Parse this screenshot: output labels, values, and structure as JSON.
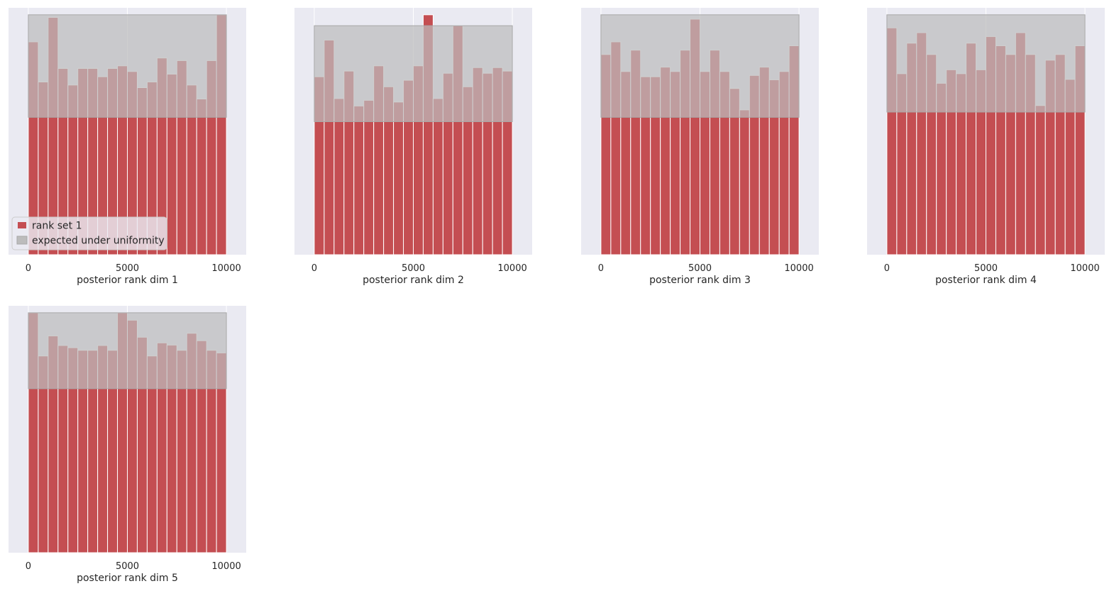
{
  "colors": {
    "axes_background": "#eaeaf2",
    "gridline": "#ffffff",
    "bar_fill": "#c44e52",
    "uniform_band_fill": "#bcbcbc",
    "tick_text": "#262626"
  },
  "legend": {
    "placement": "lower-left",
    "entries": [
      {
        "label": "rank set 1",
        "swatch": "bar"
      },
      {
        "label": "expected under uniformity",
        "swatch": "band"
      }
    ]
  },
  "chart_data": [
    {
      "type": "bar",
      "xlabel": "posterior rank dim 1",
      "xlim": [
        -1000,
        11000
      ],
      "x_ticks": [
        "0",
        "5000",
        "10000"
      ],
      "grid": true,
      "bin_edges_start": 0,
      "bin_width": 500,
      "values": [
        488,
        396,
        544,
        427,
        389,
        427,
        427,
        408,
        427,
        433,
        420,
        383,
        396,
        451,
        414,
        445,
        389,
        357,
        445,
        550
      ],
      "uniform_band": [
        315,
        550
      ],
      "ylim": [
        0,
        566
      ]
    },
    {
      "type": "bar",
      "xlabel": "posterior rank dim 2",
      "xlim": [
        -1000,
        11000
      ],
      "x_ticks": [
        "0",
        "5000",
        "10000"
      ],
      "grid": true,
      "bin_edges_start": 0,
      "bin_width": 500,
      "values": [
        408,
        492,
        358,
        421,
        341,
        354,
        433,
        385,
        350,
        400,
        433,
        550,
        358,
        416,
        525,
        385,
        429,
        416,
        429,
        421
      ],
      "uniform_band": [
        305,
        525
      ],
      "ylim": [
        0,
        566
      ]
    },
    {
      "type": "bar",
      "xlabel": "posterior rank dim 3",
      "xlim": [
        -1000,
        11000
      ],
      "x_ticks": [
        "0",
        "5000",
        "10000"
      ],
      "grid": true,
      "bin_edges_start": 0,
      "bin_width": 500,
      "values": [
        459,
        488,
        420,
        469,
        408,
        408,
        430,
        420,
        469,
        540,
        420,
        469,
        420,
        381,
        332,
        411,
        430,
        401,
        420,
        479
      ],
      "uniform_band": [
        315,
        550
      ],
      "ylim": [
        0,
        566
      ]
    },
    {
      "type": "bar",
      "xlabel": "posterior rank dim 4",
      "xlim": [
        -1000,
        11000
      ],
      "x_ticks": [
        "0",
        "5000",
        "10000"
      ],
      "grid": true,
      "bin_edges_start": 0,
      "bin_width": 500,
      "values": [
        520,
        415,
        485,
        509,
        459,
        393,
        424,
        415,
        485,
        424,
        500,
        479,
        459,
        509,
        459,
        342,
        446,
        459,
        402,
        479
      ],
      "uniform_band": [
        327,
        550
      ],
      "ylim": [
        0,
        566
      ]
    },
    {
      "type": "bar",
      "xlabel": "posterior rank dim 5",
      "xlim": [
        -1000,
        11000
      ],
      "x_ticks": [
        "0",
        "5000",
        "10000"
      ],
      "grid": true,
      "bin_edges_start": 0,
      "bin_width": 500,
      "values": [
        550,
        451,
        497,
        475,
        470,
        464,
        464,
        475,
        464,
        550,
        533,
        494,
        451,
        481,
        476,
        464,
        503,
        486,
        464,
        458
      ],
      "uniform_band": [
        376,
        550
      ],
      "ylim": [
        0,
        566
      ]
    }
  ]
}
